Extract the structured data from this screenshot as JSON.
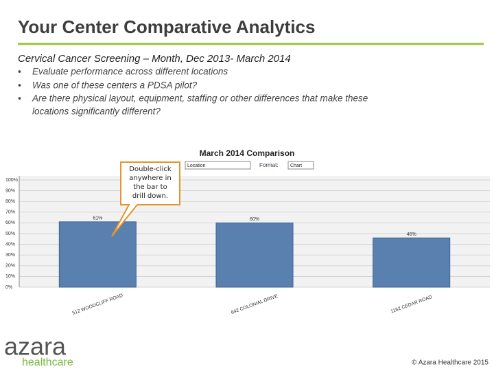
{
  "slide": {
    "title": "Your Center Comparative Analytics",
    "subtitle": "Cervical Cancer Screening – Month,  Dec 2013- March 2014",
    "bullets": [
      "Evaluate performance across different locations",
      "Was one of these centers a PDSA pilot?",
      "Are there physical layout, equipment, staffing or other differences that make these",
      "locations significantly different?"
    ],
    "location_select": "Location",
    "format_label": "Format:",
    "format_select": "Chart",
    "callout": [
      "Double-click",
      "anywhere in",
      "the bar to",
      "drill down."
    ],
    "logo": "azara",
    "logo_sub": "healthcare",
    "footer": "© Azara Healthcare 2015"
  },
  "chart_data": {
    "type": "bar",
    "title": "March 2014 Comparison",
    "categories": [
      "512 WOODCLIFF ROAD",
      "642 COLONIAL DRIVE",
      "1162 CEDAR ROAD"
    ],
    "values": [
      61,
      60,
      46
    ],
    "value_labels": [
      "61%",
      "60%",
      "46%"
    ],
    "color": "#5a80b0",
    "ylim": [
      0,
      100
    ],
    "yticks": [
      {
        "value": 0,
        "label": "0%"
      },
      {
        "value": 10,
        "label": "10%"
      },
      {
        "value": 20,
        "label": "20%"
      },
      {
        "value": 30,
        "label": "30%"
      },
      {
        "value": 40,
        "label": "40%"
      },
      {
        "value": 50,
        "label": "50%"
      },
      {
        "value": 60,
        "label": "60%"
      },
      {
        "value": 70,
        "label": "70%"
      },
      {
        "value": 80,
        "label": "80%"
      },
      {
        "value": 90,
        "label": "90%"
      },
      {
        "value": 100,
        "label": "100%"
      }
    ],
    "grid": true
  }
}
